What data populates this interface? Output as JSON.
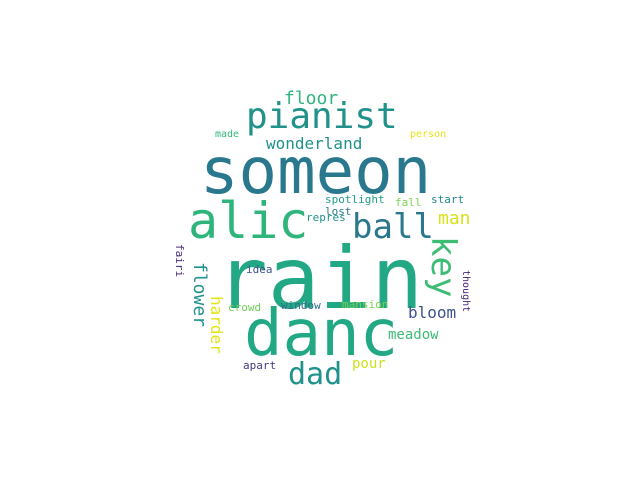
{
  "words": [
    {
      "text": "rain",
      "color": "#22a884",
      "orient": "h"
    },
    {
      "text": "someon",
      "color": "#2a788e",
      "orient": "h"
    },
    {
      "text": "danc",
      "color": "#22a884",
      "orient": "h"
    },
    {
      "text": "alic",
      "color": "#2fb47c",
      "orient": "h"
    },
    {
      "text": "pianist",
      "color": "#21918c",
      "orient": "h"
    },
    {
      "text": "ball",
      "color": "#2a788e",
      "orient": "h"
    },
    {
      "text": "key",
      "color": "#3dbc74",
      "orient": "v"
    },
    {
      "text": "dad",
      "color": "#21918c",
      "orient": "h"
    },
    {
      "text": "floor",
      "color": "#2fb47c",
      "orient": "h"
    },
    {
      "text": "wonderland",
      "color": "#21918c",
      "orient": "h"
    },
    {
      "text": "man",
      "color": "#d8e219",
      "orient": "h"
    },
    {
      "text": "flower",
      "color": "#21918c",
      "orient": "v"
    },
    {
      "text": "harder",
      "color": "#e2e418",
      "orient": "v"
    },
    {
      "text": "bloom",
      "color": "#3b528b",
      "orient": "h"
    },
    {
      "text": "meadow",
      "color": "#3dbc74",
      "orient": "h"
    },
    {
      "text": "pour",
      "color": "#cde11d",
      "orient": "h"
    },
    {
      "text": "made",
      "color": "#35b779",
      "orient": "h"
    },
    {
      "text": "person",
      "color": "#e5e419",
      "orient": "h"
    },
    {
      "text": "spotlight",
      "color": "#1f9e89",
      "orient": "h"
    },
    {
      "text": "repres",
      "color": "#21918c",
      "orient": "h"
    },
    {
      "text": "lost",
      "color": "#2a788e",
      "orient": "h"
    },
    {
      "text": "fall",
      "color": "#7ad151",
      "orient": "h"
    },
    {
      "text": "start",
      "color": "#25858e",
      "orient": "h"
    },
    {
      "text": "fairi",
      "color": "#472d7b",
      "orient": "v"
    },
    {
      "text": "idea",
      "color": "#3b528b",
      "orient": "h"
    },
    {
      "text": "thought",
      "color": "#482475",
      "orient": "v"
    },
    {
      "text": "crowd",
      "color": "#6ece58",
      "orient": "h"
    },
    {
      "text": "window",
      "color": "#31688e",
      "orient": "h"
    },
    {
      "text": "mansion",
      "color": "#7ad151",
      "orient": "h"
    },
    {
      "text": "apart",
      "color": "#443983",
      "orient": "h"
    }
  ]
}
